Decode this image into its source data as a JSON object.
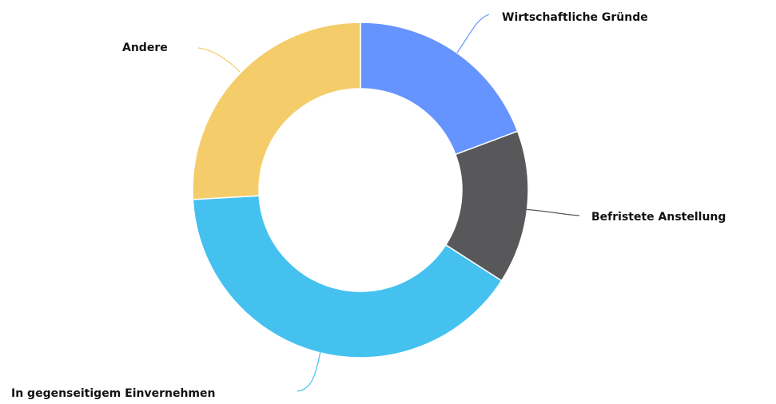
{
  "chart_data": {
    "type": "donut",
    "categories": [
      "Wirtschaftliche Gründe",
      "Befristete Anstellung",
      "In gegenseitigem Einvernehmen",
      "Andere"
    ],
    "values": [
      19.3,
      14.8,
      40.0,
      25.9
    ],
    "colors": [
      "#6694ff",
      "#58585a",
      "#45c1f0",
      "#f4cd6a"
    ]
  }
}
